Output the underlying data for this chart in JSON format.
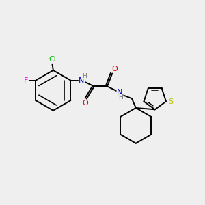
{
  "background_color": "#efefef",
  "bond_color": "#000000",
  "bond_width": 1.4,
  "atom_colors": {
    "C": "#000000",
    "N": "#0000cc",
    "O": "#dd0000",
    "S": "#bbbb00",
    "Cl": "#00bb00",
    "F": "#ee00ee",
    "H": "#777777"
  },
  "font_size": 8.0,
  "font_size_small": 6.5,
  "figsize": [
    3.0,
    3.0
  ],
  "dpi": 100
}
